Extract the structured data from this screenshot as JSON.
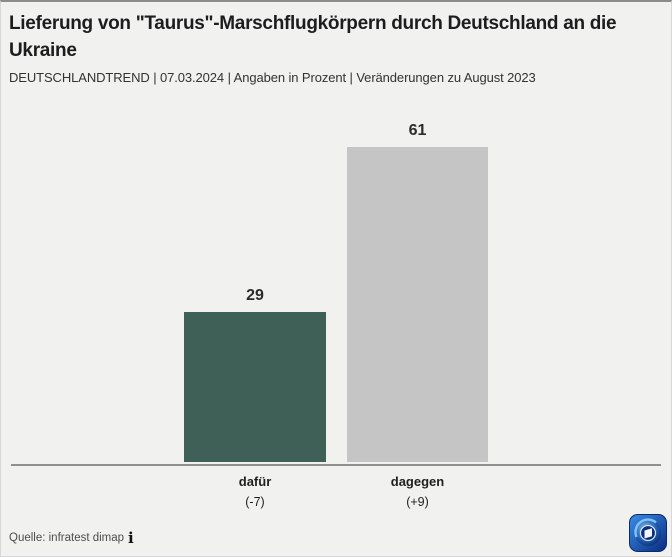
{
  "header": {
    "title": "Lieferung von \"Taurus\"-Marschflugkörpern durch Deutschland an die Ukraine",
    "subtitle": "DEUTSCHLANDTREND | 07.03.2024 | Angaben in Prozent | Veränderungen zu August 2023"
  },
  "chart_data": {
    "type": "bar",
    "title": "Lieferung von \"Taurus\"-Marschflugkörpern durch Deutschland an die Ukraine",
    "subtitle": "DEUTSCHLANDTREND | 07.03.2024 | Angaben in Prozent | Veränderungen zu August 2023",
    "categories": [
      "dafür",
      "dagegen"
    ],
    "values": [
      29,
      61
    ],
    "changes": [
      "(-7)",
      "(+9)"
    ],
    "bar_colors": [
      "#3e6057",
      "#c5c5c5"
    ],
    "unit": "Prozent",
    "comparison_period": "August 2023",
    "ylim": [
      0,
      65
    ],
    "grid": false,
    "legend": false
  },
  "footer": {
    "source": "Quelle: infratest dimap",
    "info_icon_glyph": "i"
  },
  "colors": {
    "background": "#f1f1f0",
    "baseline": "#8f8f8f",
    "bar_dafuer": "#3e6057",
    "bar_dagegen": "#c5c5c5"
  }
}
